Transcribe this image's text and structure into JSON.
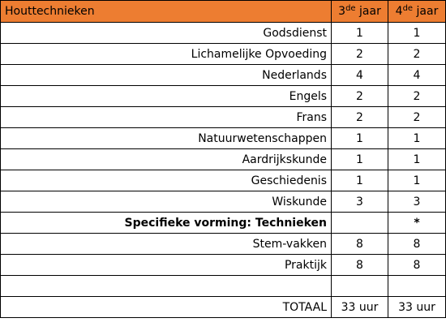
{
  "table": {
    "header": {
      "title": "Houttechnieken",
      "year3_number": "3",
      "year3_suffix": "de",
      "year3_word": "jaar",
      "year4_number": "4",
      "year4_suffix": "de",
      "year4_word": "jaar"
    },
    "header_color": "#ed7d31",
    "rows": [
      {
        "subject": "Godsdienst",
        "year3": "1",
        "year4": "1"
      },
      {
        "subject": "Lichamelijke Opvoeding",
        "year3": "2",
        "year4": "2"
      },
      {
        "subject": "Nederlands",
        "year3": "4",
        "year4": "4"
      },
      {
        "subject": "Engels",
        "year3": "2",
        "year4": "2"
      },
      {
        "subject": "Frans",
        "year3": "2",
        "year4": "2"
      },
      {
        "subject": "Natuurwetenschappen",
        "year3": "1",
        "year4": "1"
      },
      {
        "subject": "Aardrijkskunde",
        "year3": "1",
        "year4": "1"
      },
      {
        "subject": "Geschiedenis",
        "year3": "1",
        "year4": "1"
      },
      {
        "subject": "Wiskunde",
        "year3": "3",
        "year4": "3"
      },
      {
        "subject": "Specifieke vorming: Technieken",
        "year3": "",
        "year4": "*"
      },
      {
        "subject": "Stem-vakken",
        "year3": "8",
        "year4": "8"
      },
      {
        "subject": "Praktijk",
        "year3": "8",
        "year4": "8"
      },
      {
        "subject": "",
        "year3": "",
        "year4": ""
      },
      {
        "subject": "TOTAAL",
        "year3": "33 uur",
        "year4": "33 uur"
      }
    ]
  }
}
